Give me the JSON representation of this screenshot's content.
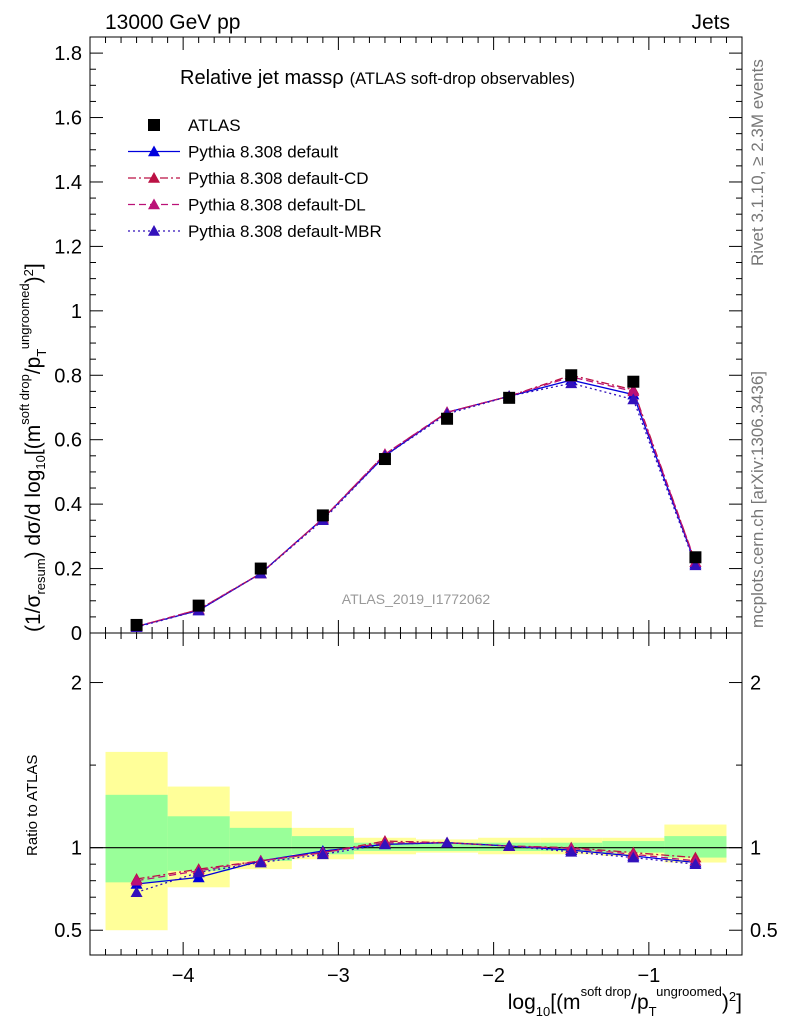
{
  "header": {
    "process": "13000 GeV pp",
    "category": "Jets"
  },
  "side_labels": {
    "rivet": "Rivet 3.1.10, ≥ 2.3M events",
    "mcplots": "mcplots.cern.ch [arXiv:1306.3436]"
  },
  "watermark": "ATLAS_2019_I1772062",
  "chart_data": [
    {
      "type": "line",
      "title_main": "Relative jet massρ",
      "title_sub": "(ATLAS soft-drop observables)",
      "ylabel": "(1/σresum) dσ/d log10[(m soft drop / pT ungroomed)2]",
      "xlim": [
        -4.6,
        -0.4
      ],
      "ylim": [
        0,
        1.85
      ],
      "x_ticks": [
        -4,
        -3,
        -2,
        -1
      ],
      "x_tick_labels": [
        "−4",
        "−3",
        "−2",
        "−1"
      ],
      "y_ticks": [
        0,
        0.2,
        0.4,
        0.6,
        0.8,
        1,
        1.2,
        1.4,
        1.6,
        1.8
      ],
      "y_tick_labels": [
        "0",
        "0.2",
        "0.4",
        "0.6",
        "0.8",
        "1",
        "1.2",
        "1.4",
        "1.6",
        "1.8"
      ],
      "legend_position": "top-left",
      "x": [
        -4.3,
        -3.9,
        -3.5,
        -3.1,
        -2.7,
        -2.3,
        -1.9,
        -1.5,
        -1.1,
        -0.7
      ],
      "series": [
        {
          "name": "ATLAS",
          "color": "#000000",
          "marker": "square",
          "style": "none",
          "values": [
            0.025,
            0.085,
            0.2,
            0.365,
            0.54,
            0.665,
            0.73,
            0.8,
            0.78,
            0.235
          ]
        },
        {
          "name": "Pythia 8.308 default",
          "color": "#0000dd",
          "marker": "triangle",
          "style": "solid",
          "values": [
            0.02,
            0.07,
            0.185,
            0.355,
            0.55,
            0.685,
            0.735,
            0.785,
            0.74,
            0.215
          ]
        },
        {
          "name": "Pythia 8.308 default-CD",
          "color": "#bb1144",
          "marker": "triangle",
          "style": "dashdot",
          "values": [
            0.02,
            0.073,
            0.185,
            0.355,
            0.555,
            0.685,
            0.735,
            0.8,
            0.755,
            0.22
          ]
        },
        {
          "name": "Pythia 8.308 default-DL",
          "color": "#bb1177",
          "marker": "triangle",
          "style": "dashed",
          "values": [
            0.02,
            0.073,
            0.185,
            0.355,
            0.555,
            0.685,
            0.735,
            0.795,
            0.75,
            0.22
          ]
        },
        {
          "name": "Pythia 8.308 default-MBR",
          "color": "#3311bb",
          "marker": "triangle",
          "style": "dotted",
          "values": [
            0.018,
            0.07,
            0.185,
            0.35,
            0.55,
            0.68,
            0.735,
            0.775,
            0.725,
            0.21
          ]
        }
      ]
    },
    {
      "type": "line",
      "ylabel": "Ratio to ATLAS",
      "xlabel": "log10[(m soft drop / pT ungroomed)2]",
      "xlim": [
        -4.6,
        -0.4
      ],
      "ylim": [
        0.35,
        2.3
      ],
      "x_ticks": [
        -4,
        -3,
        -2,
        -1
      ],
      "x_tick_labels": [
        "−4",
        "−3",
        "−2",
        "−1"
      ],
      "y_ticks": [
        0.5,
        1,
        2
      ],
      "y_tick_labels": [
        "0.5",
        "1",
        "2"
      ],
      "reference_line": 1,
      "uncertainty_bands": {
        "bin_edges": [
          -4.5,
          -4.1,
          -3.7,
          -3.3,
          -2.9,
          -2.5,
          -2.1,
          -1.7,
          -1.3,
          -0.9,
          -0.5
        ],
        "outer": {
          "color": "#ffff99",
          "low": [
            0.5,
            0.76,
            0.87,
            0.93,
            0.96,
            0.97,
            0.96,
            0.96,
            0.95,
            0.91
          ],
          "high": [
            1.58,
            1.37,
            1.22,
            1.12,
            1.06,
            1.05,
            1.06,
            1.06,
            1.06,
            1.14
          ]
        },
        "inner": {
          "color": "#99ff99",
          "low": [
            0.79,
            0.86,
            0.92,
            0.96,
            0.98,
            0.98,
            0.98,
            0.98,
            0.97,
            0.94
          ],
          "high": [
            1.32,
            1.19,
            1.12,
            1.07,
            1.03,
            1.03,
            1.03,
            1.03,
            1.04,
            1.07
          ]
        }
      },
      "x": [
        -4.3,
        -3.9,
        -3.5,
        -3.1,
        -2.7,
        -2.3,
        -1.9,
        -1.5,
        -1.1,
        -0.7
      ],
      "series": [
        {
          "name": "Pythia 8.308 default",
          "color": "#0000dd",
          "style": "solid",
          "values": [
            0.78,
            0.82,
            0.92,
            0.98,
            1.02,
            1.03,
            1.01,
            0.985,
            0.95,
            0.91
          ]
        },
        {
          "name": "Pythia 8.308 default-CD",
          "color": "#bb1144",
          "style": "dashdot",
          "values": [
            0.81,
            0.87,
            0.92,
            0.97,
            1.04,
            1.03,
            1.01,
            1.0,
            0.97,
            0.94
          ]
        },
        {
          "name": "Pythia 8.308 default-DL",
          "color": "#bb1177",
          "style": "dashed",
          "values": [
            0.8,
            0.86,
            0.92,
            0.97,
            1.03,
            1.03,
            1.01,
            0.995,
            0.96,
            0.92
          ]
        },
        {
          "name": "Pythia 8.308 default-MBR",
          "color": "#3311bb",
          "style": "dotted",
          "values": [
            0.73,
            0.85,
            0.91,
            0.96,
            1.02,
            1.03,
            1.01,
            0.975,
            0.94,
            0.9
          ]
        }
      ]
    }
  ]
}
